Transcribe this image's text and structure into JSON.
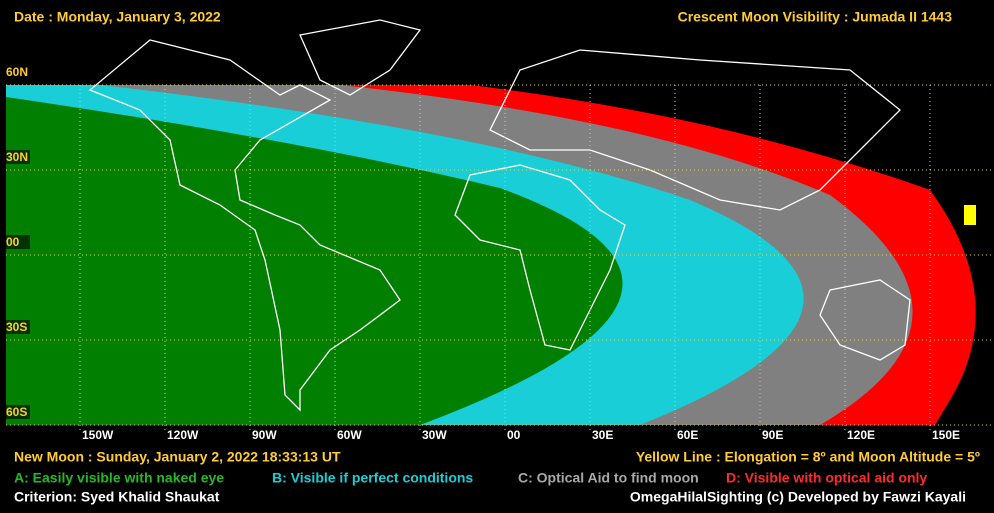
{
  "header": {
    "date": "Date : Monday, January 3, 2022",
    "title": "Crescent Moon Visibility : Jumada II  1443"
  },
  "map": {
    "lat_labels": [
      "60N",
      "30N",
      "00",
      "30S",
      "60S"
    ],
    "lon_labels": [
      "150W",
      "120W",
      "90W",
      "60W",
      "30W",
      "00",
      "30E",
      "60E",
      "90E",
      "120E",
      "150E"
    ]
  },
  "footer": {
    "new_moon": "New Moon : Sunday, January 2, 2022  18:33:13  UT",
    "yellow_line": "Yellow Line : Elongation = 8º  and Moon Altitude = 5º",
    "criterion": "Criterion: Syed Khalid Shaukat",
    "credit": "OmegaHilalSighting  (c)  Developed by Fawzi Kayali"
  },
  "legend": {
    "items": [
      "A: Easily visible with naked eye",
      "B: Visible if perfect conditions",
      "C: Optical Aid to find moon",
      "D: Visible with optical aid only"
    ]
  }
}
